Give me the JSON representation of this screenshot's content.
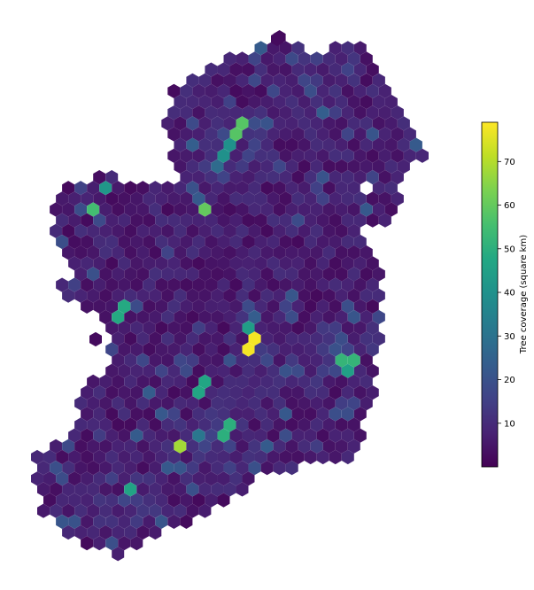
{
  "chart_data": {
    "type": "heatmap",
    "subtype": "hexbin-map",
    "region": "Ireland",
    "colormap": "viridis",
    "colorbar": {
      "label": "Tree coverage (square km)",
      "range": [
        0,
        79
      ],
      "ticks": [
        10,
        20,
        30,
        40,
        50,
        60,
        70
      ],
      "placement": "right"
    },
    "grid": false,
    "hexagon_count_approx": 650,
    "notable_cells": [
      {
        "value": 78,
        "note": "central highest cell"
      },
      {
        "value": 68,
        "note": "south-west high cell"
      },
      {
        "value": 60,
        "note": "north-west high cell"
      },
      {
        "value": 58,
        "note": "north-west high cell"
      },
      {
        "value": 55,
        "note": "north-east high cell"
      },
      {
        "value": 52,
        "note": "south high cell"
      }
    ],
    "colors": {
      "low": "#440154",
      "mid": "#21918c",
      "high": "#fde725"
    }
  }
}
